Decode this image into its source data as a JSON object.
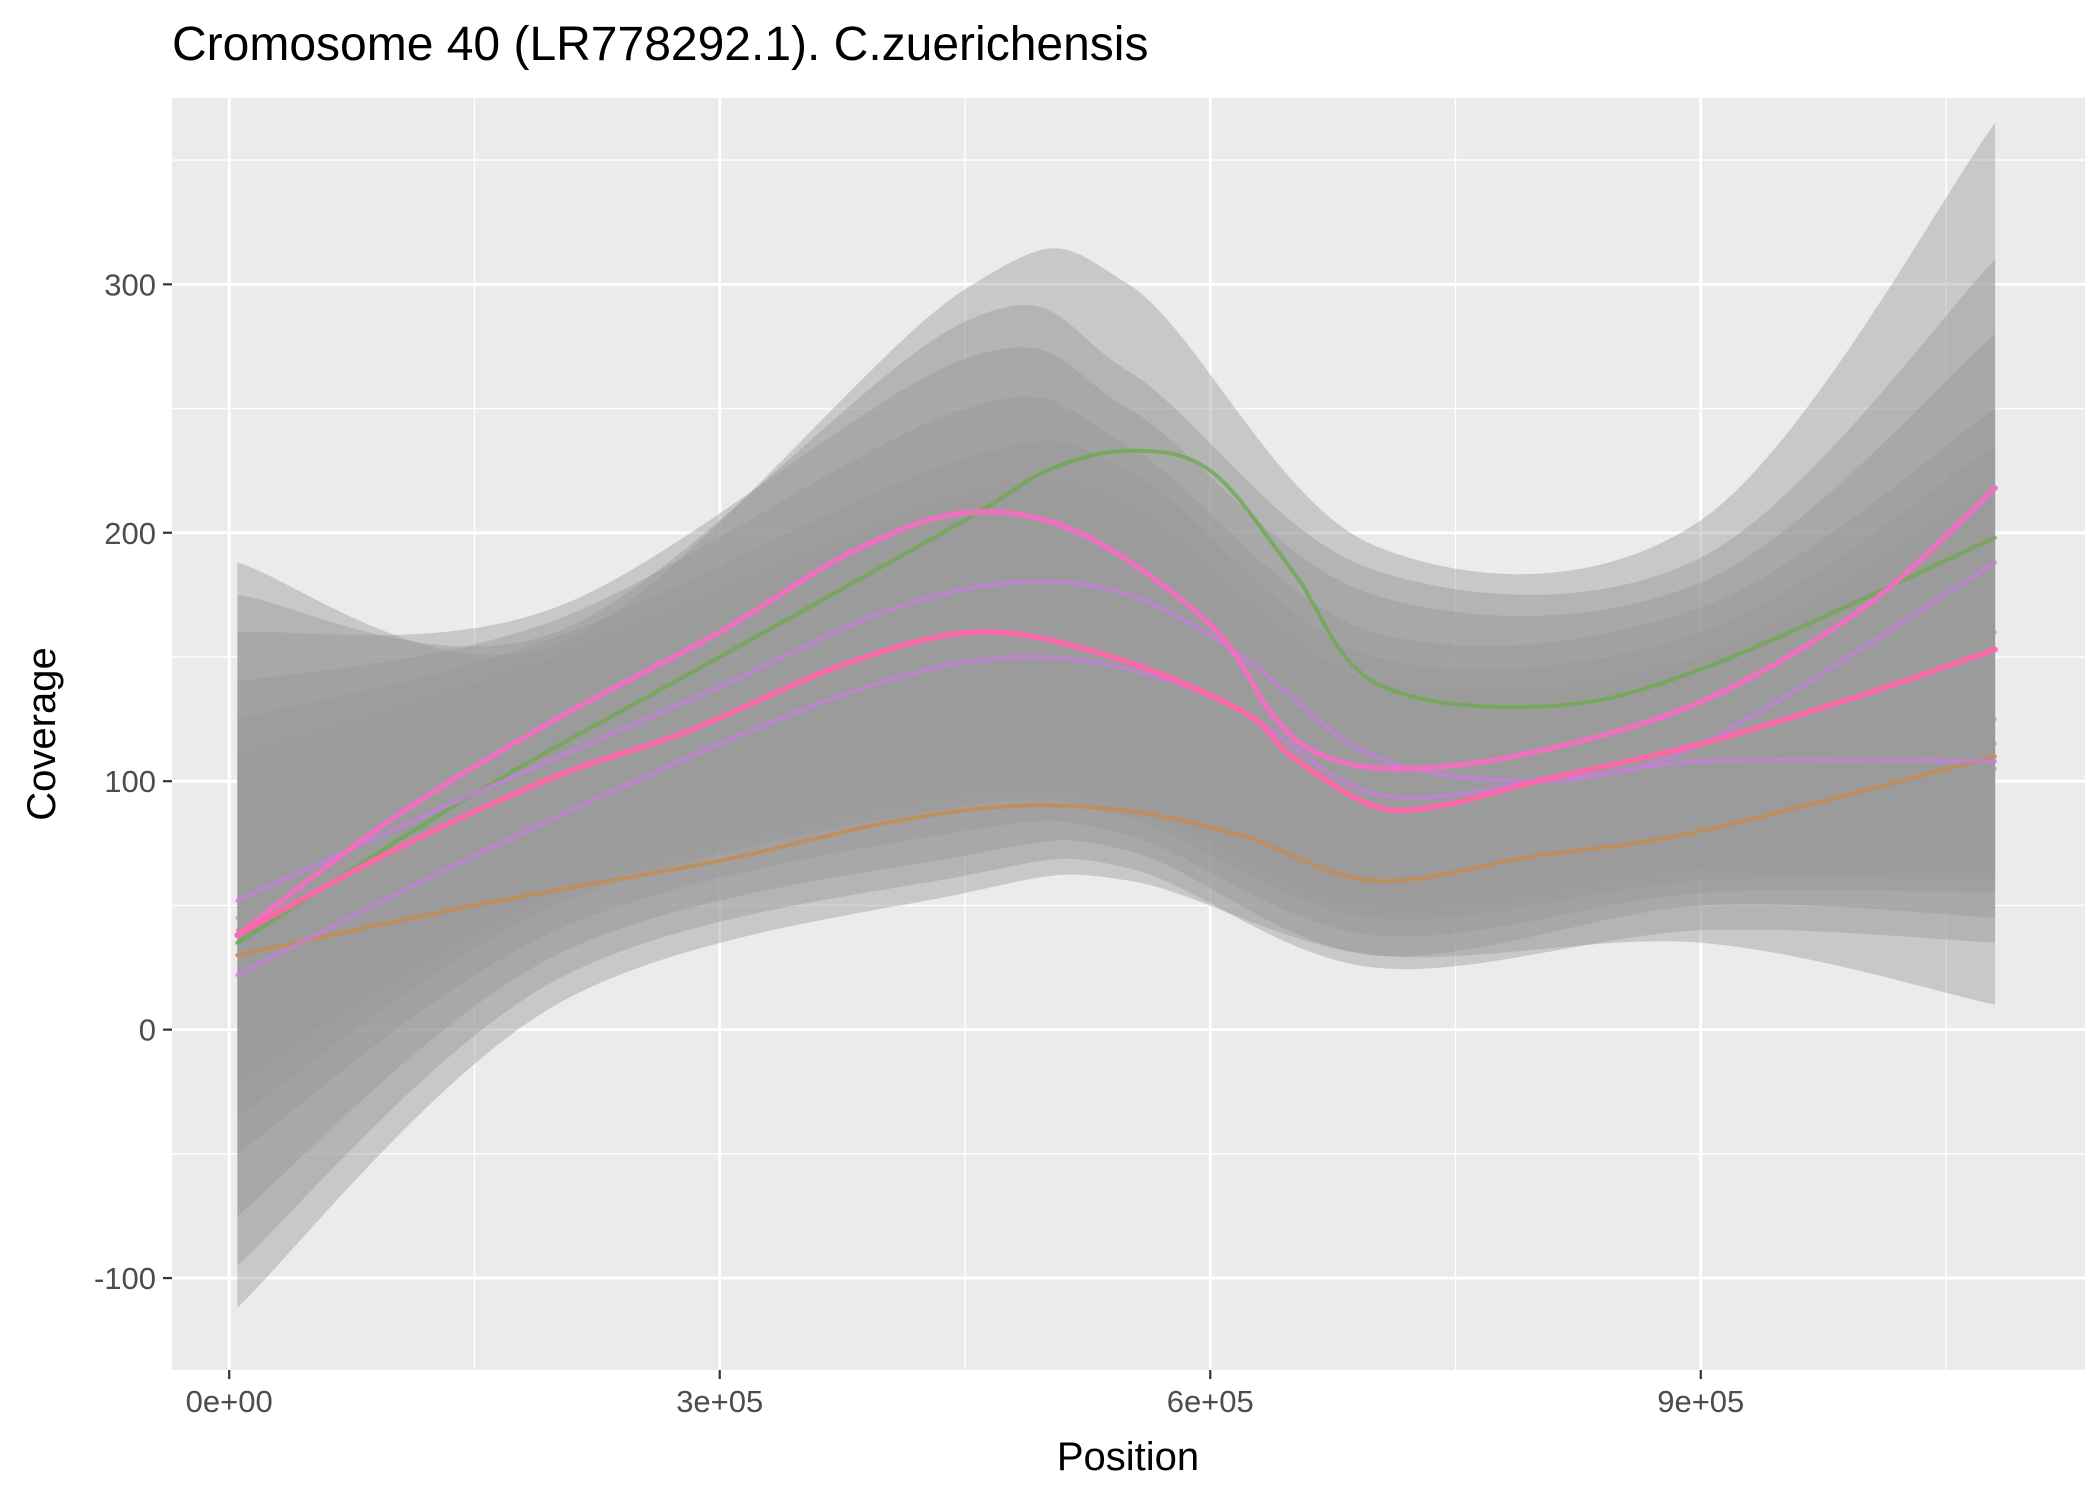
{
  "chart_data": {
    "type": "line",
    "title": "Cromosome 40 (LR778292.1). C.zuerichensis",
    "xlabel": "Position",
    "ylabel": "Coverage",
    "xlim": [
      -35000,
      1135000
    ],
    "ylim": [
      -137,
      375
    ],
    "x_ticks": [
      {
        "value": 0,
        "label": "0e+00"
      },
      {
        "value": 300000,
        "label": "3e+05"
      },
      {
        "value": 600000,
        "label": "6e+05"
      },
      {
        "value": 900000,
        "label": "9e+05"
      }
    ],
    "y_ticks": [
      {
        "value": -100,
        "label": "-100"
      },
      {
        "value": 0,
        "label": "0"
      },
      {
        "value": 100,
        "label": "100"
      },
      {
        "value": 200,
        "label": "200"
      },
      {
        "value": 300,
        "label": "300"
      }
    ],
    "grid": true,
    "legend": "none",
    "colors": {
      "panel_background": "#ebebeb",
      "grid_major": "#ffffff",
      "confidence_band": "#999999",
      "highlight_line": "#ff66a8",
      "pink_line": "#f06fc0",
      "purple_line": "#c77ddc",
      "green_line": "#6bab4a",
      "orange_line": "#c98a4b"
    },
    "bands": [
      {
        "x": [
          5000,
          200000,
          450000,
          550000,
          700000,
          900000,
          1080000
        ],
        "upper": [
          188,
          155,
          298,
          300,
          195,
          205,
          365
        ],
        "lower": [
          -112,
          10,
          55,
          60,
          30,
          35,
          10
        ]
      },
      {
        "x": [
          5000,
          200000,
          450000,
          550000,
          700000,
          900000,
          1080000
        ],
        "upper": [
          175,
          160,
          285,
          265,
          185,
          190,
          310
        ],
        "lower": [
          -95,
          20,
          62,
          65,
          25,
          40,
          35
        ]
      },
      {
        "x": [
          5000,
          200000,
          450000,
          550000,
          700000,
          900000,
          1080000
        ],
        "upper": [
          160,
          170,
          270,
          250,
          175,
          180,
          280
        ],
        "lower": [
          -75,
          30,
          70,
          72,
          30,
          50,
          45
        ]
      },
      {
        "x": [
          5000,
          200000,
          450000,
          550000,
          700000,
          900000,
          1080000
        ],
        "upper": [
          140,
          165,
          250,
          235,
          160,
          170,
          250
        ],
        "lower": [
          -50,
          40,
          80,
          78,
          38,
          55,
          55
        ]
      },
      {
        "x": [
          5000,
          200000,
          450000,
          550000,
          700000,
          900000,
          1080000
        ],
        "upper": [
          125,
          158,
          230,
          225,
          150,
          160,
          235
        ],
        "lower": [
          -35,
          50,
          90,
          85,
          45,
          60,
          60
        ]
      },
      {
        "x": [
          5000,
          200000,
          450000,
          550000,
          700000,
          900000,
          1080000
        ],
        "upper": [
          110,
          150,
          215,
          210,
          140,
          150,
          220
        ],
        "lower": [
          -20,
          55,
          95,
          90,
          50,
          65,
          65
        ]
      }
    ],
    "series": [
      {
        "color": "#999999",
        "x": [
          5000,
          150000,
          300000,
          450000,
          550000,
          650000,
          750000,
          900000,
          1080000
        ],
        "y": [
          30,
          70,
          90,
          110,
          115,
          100,
          75,
          85,
          105
        ]
      },
      {
        "color": "#999999",
        "x": [
          5000,
          150000,
          300000,
          450000,
          550000,
          650000,
          750000,
          900000,
          1080000
        ],
        "y": [
          45,
          95,
          125,
          140,
          135,
          115,
          95,
          105,
          125
        ]
      },
      {
        "color": "#999999",
        "x": [
          5000,
          150000,
          300000,
          450000,
          550000,
          650000,
          750000,
          900000,
          1080000
        ],
        "y": [
          35,
          85,
          110,
          130,
          128,
          108,
          88,
          98,
          115
        ]
      },
      {
        "color": "#999999",
        "x": [
          5000,
          150000,
          300000,
          450000,
          550000,
          650000,
          750000,
          900000,
          1080000
        ],
        "y": [
          40,
          100,
          140,
          165,
          160,
          130,
          110,
          125,
          160
        ]
      },
      {
        "color": "#6bab4a",
        "x": [
          5000,
          150000,
          300000,
          450000,
          500000,
          550000,
          600000,
          650000,
          700000,
          800000,
          900000,
          1080000
        ],
        "y": [
          35,
          95,
          150,
          205,
          225,
          233,
          225,
          185,
          140,
          130,
          145,
          198
        ]
      },
      {
        "color": "#c98a4b",
        "x": [
          5000,
          150000,
          300000,
          400000,
          480000,
          550000,
          620000,
          700000,
          800000,
          900000,
          1080000
        ],
        "y": [
          30,
          50,
          68,
          83,
          90,
          88,
          78,
          60,
          70,
          80,
          110
        ]
      },
      {
        "color": "#c77ddc",
        "x": [
          5000,
          150000,
          300000,
          400000,
          480000,
          550000,
          620000,
          700000,
          800000,
          900000,
          1080000
        ],
        "y": [
          52,
          95,
          138,
          168,
          180,
          175,
          150,
          110,
          100,
          108,
          108
        ]
      },
      {
        "color": "#c77ddc",
        "x": [
          5000,
          150000,
          300000,
          400000,
          480000,
          550000,
          620000,
          700000,
          800000,
          900000,
          1080000
        ],
        "y": [
          22,
          70,
          115,
          140,
          150,
          145,
          128,
          95,
          100,
          115,
          188
        ]
      },
      {
        "color": "#f06fc0",
        "x": [
          5000,
          100000,
          200000,
          300000,
          380000,
          450000,
          520000,
          600000,
          640000,
          670000,
          720000,
          800000,
          900000,
          1000000,
          1080000
        ],
        "y": [
          38,
          85,
          125,
          160,
          192,
          208,
          200,
          163,
          125,
          110,
          105,
          112,
          132,
          170,
          218
        ]
      },
      {
        "color": "#ff66a8",
        "x": [
          5000,
          100000,
          200000,
          280000,
          380000,
          460000,
          540000,
          620000,
          650000,
          700000,
          740000,
          800000,
          900000,
          1000000,
          1080000
        ],
        "y": [
          38,
          72,
          102,
          120,
          148,
          160,
          150,
          128,
          110,
          90,
          90,
          100,
          115,
          135,
          153
        ]
      }
    ]
  }
}
